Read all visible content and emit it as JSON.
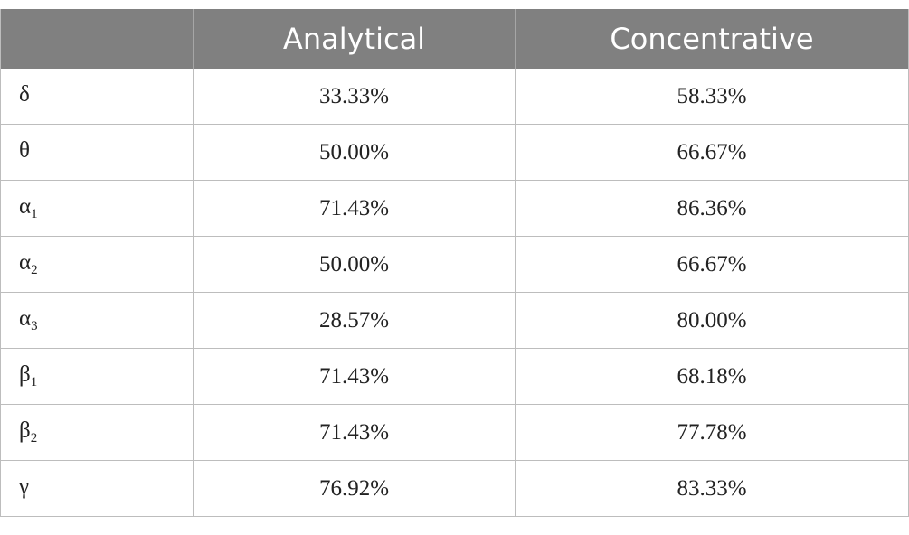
{
  "table": {
    "columns": [
      "",
      "Analytical",
      "Concentrative"
    ],
    "rows": [
      {
        "symbol": "δ",
        "sub": "",
        "analytical": "33.33%",
        "concentrative": "58.33%"
      },
      {
        "symbol": "θ",
        "sub": "",
        "analytical": "50.00%",
        "concentrative": "66.67%"
      },
      {
        "symbol": "α",
        "sub": "1",
        "analytical": "71.43%",
        "concentrative": "86.36%"
      },
      {
        "symbol": "α",
        "sub": "2",
        "analytical": "50.00%",
        "concentrative": "66.67%"
      },
      {
        "symbol": "α",
        "sub": "3",
        "analytical": "28.57%",
        "concentrative": "80.00%"
      },
      {
        "symbol": "β",
        "sub": "1",
        "analytical": "71.43%",
        "concentrative": "68.18%"
      },
      {
        "symbol": "β",
        "sub": "2",
        "analytical": "71.43%",
        "concentrative": "77.78%"
      },
      {
        "symbol": "γ",
        "sub": "",
        "analytical": "76.92%",
        "concentrative": "83.33%"
      }
    ]
  },
  "colors": {
    "header_bg": "#808080",
    "header_text": "#ffffff",
    "grid": "#bdbdbd"
  }
}
